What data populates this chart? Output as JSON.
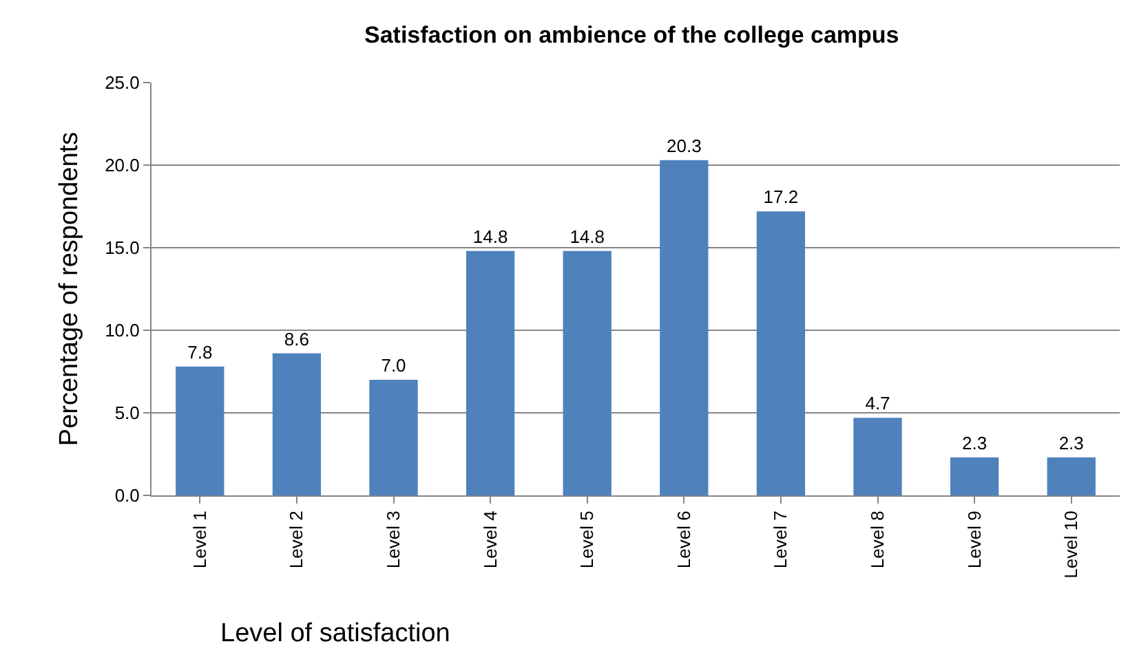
{
  "chart_data": {
    "type": "bar",
    "title": "Satisfaction on ambience of the college campus",
    "xlabel": "Level of satisfaction",
    "ylabel": "Percentage of respondents",
    "categories": [
      "Level 1",
      "Level 2",
      "Level 3",
      "Level 4",
      "Level 5",
      "Level 6",
      "Level 7",
      "Level 8",
      "Level 9",
      "Level 10"
    ],
    "values": [
      7.8,
      8.6,
      7.0,
      14.8,
      14.8,
      20.3,
      17.2,
      4.7,
      2.3,
      2.3
    ],
    "value_labels": [
      "7.8",
      "8.6",
      "7.0",
      "14.8",
      "14.8",
      "20.3",
      "17.2",
      "4.7",
      "2.3",
      "2.3"
    ],
    "color": "#4f81bd",
    "ylim": [
      0,
      25
    ],
    "yticks": [
      {
        "value": 0,
        "label": "0.0"
      },
      {
        "value": 5,
        "label": "5.0"
      },
      {
        "value": 10,
        "label": "10.0"
      },
      {
        "value": 15,
        "label": "15.0"
      },
      {
        "value": 20,
        "label": "20.0"
      },
      {
        "value": 25,
        "label": "25.0"
      }
    ],
    "grid": "y",
    "legend": false
  }
}
